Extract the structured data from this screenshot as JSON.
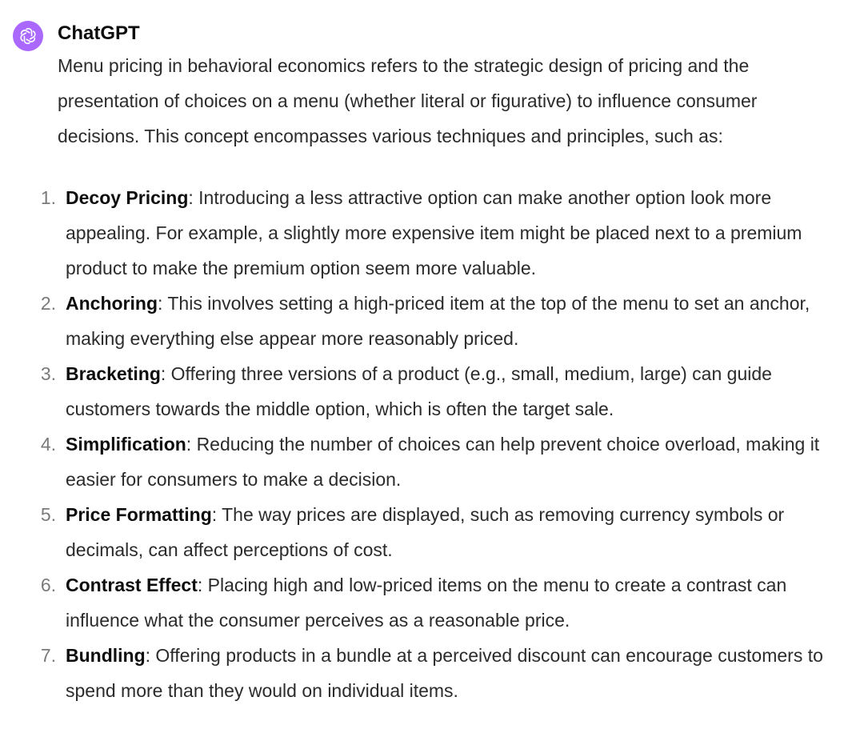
{
  "message": {
    "author": "ChatGPT",
    "avatar_icon": "openai-logo-icon",
    "avatar_color": "#ab68ff",
    "intro": "Menu pricing in behavioral economics refers to the strategic design of pricing and the presentation of choices on a menu (whether literal or figurative) to influence consumer decisions. This concept encompasses various techniques and principles, such as:",
    "items": [
      {
        "number": "1.",
        "term": "Decoy Pricing",
        "text": ": Introducing a less attractive option can make another option look more appealing. For example, a slightly more expensive item might be placed next to a premium product to make the premium option seem more valuable."
      },
      {
        "number": "2.",
        "term": "Anchoring",
        "text": ": This involves setting a high-priced item at the top of the menu to set an anchor, making everything else appear more reasonably priced."
      },
      {
        "number": "3.",
        "term": "Bracketing",
        "text": ": Offering three versions of a product (e.g., small, medium, large) can guide customers towards the middle option, which is often the target sale."
      },
      {
        "number": "4.",
        "term": "Simplification",
        "text": ": Reducing the number of choices can help prevent choice overload, making it easier for consumers to make a decision."
      },
      {
        "number": "5.",
        "term": "Price Formatting",
        "text": ": The way prices are displayed, such as removing currency symbols or decimals, can affect perceptions of cost."
      },
      {
        "number": "6.",
        "term": "Contrast Effect",
        "text": ": Placing high and low-priced items on the menu to create a contrast can influence what the consumer perceives as a reasonable price."
      },
      {
        "number": "7.",
        "term": "Bundling",
        "text": ": Offering products in a bundle at a perceived discount can encourage customers to spend more than they would on individual items."
      }
    ]
  }
}
